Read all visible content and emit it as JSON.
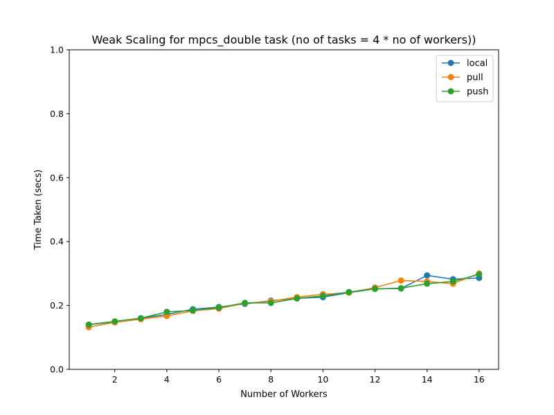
{
  "chart_data": {
    "type": "line",
    "title": "Weak Scaling for mpcs_double task (no of tasks = 4 * no of workers))",
    "xlabel": "Number of Workers",
    "ylabel": "Time Taken (secs)",
    "xlim": [
      0.25,
      16.75
    ],
    "ylim": [
      0.0,
      1.0
    ],
    "xticks": [
      "2",
      "4",
      "6",
      "8",
      "10",
      "12",
      "14",
      "16"
    ],
    "xtick_values": [
      2,
      4,
      6,
      8,
      10,
      12,
      14,
      16
    ],
    "yticks": [
      "0.0",
      "0.2",
      "0.4",
      "0.6",
      "0.8",
      "1.0"
    ],
    "ytick_values": [
      0.0,
      0.2,
      0.4,
      0.6,
      0.8,
      1.0
    ],
    "grid": false,
    "legend_position": "top-right",
    "x": [
      1,
      2,
      3,
      4,
      5,
      6,
      7,
      8,
      9,
      10,
      11,
      12,
      13,
      14,
      15,
      16
    ],
    "series": [
      {
        "name": "local",
        "color": "#1f77b4",
        "values": [
          0.14,
          0.148,
          0.16,
          0.172,
          0.188,
          0.195,
          0.205,
          0.215,
          0.222,
          0.226,
          0.24,
          0.252,
          0.253,
          0.294,
          0.282,
          0.286
        ]
      },
      {
        "name": "pull",
        "color": "#ff7f0e",
        "values": [
          0.132,
          0.147,
          0.157,
          0.167,
          0.183,
          0.19,
          0.207,
          0.213,
          0.226,
          0.235,
          0.24,
          0.256,
          0.278,
          0.275,
          0.268,
          0.3
        ]
      },
      {
        "name": "push",
        "color": "#2ca02c",
        "values": [
          0.14,
          0.15,
          0.16,
          0.18,
          0.184,
          0.193,
          0.208,
          0.208,
          0.222,
          0.23,
          0.242,
          0.252,
          0.254,
          0.268,
          0.275,
          0.297
        ]
      }
    ]
  }
}
